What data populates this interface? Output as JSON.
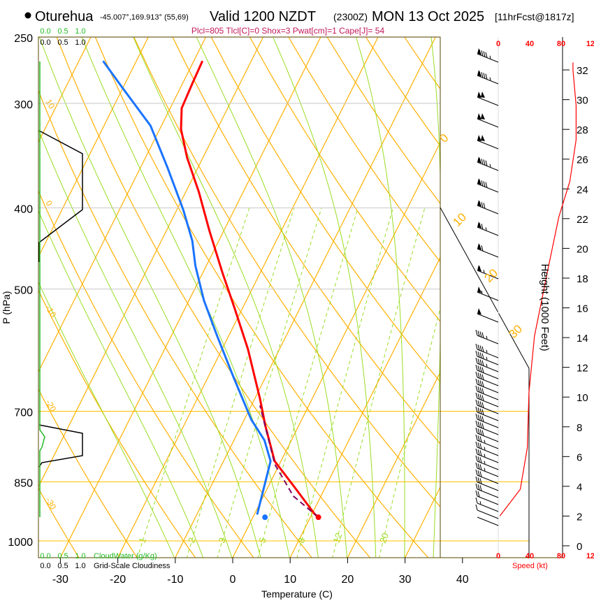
{
  "chart_data": {
    "type": "line",
    "title": {
      "station": "Oturehua",
      "coords": "-45.007°,169.913° (55,69)",
      "valid": "Valid 1200 NZDT",
      "utc": "(2300Z)",
      "date": "MON 13 Oct 2025",
      "forecast": "[11hrFcst@1817z]"
    },
    "indices": "Plcl=805 Tlcl[C]=0 Shox=3 Pwat[cm]=1 Cape[J]= 54",
    "xlabel": "Temperature (C)",
    "ylabel": "P (hPa)",
    "y2label": "Height (1000 Feet)",
    "speed_label": "Speed (kt)",
    "xlim": [
      -33,
      45
    ],
    "ylim_hpa": [
      1050,
      250
    ],
    "x_ticks": [
      "-30",
      "-20",
      "-10",
      "0",
      "10",
      "20",
      "30",
      "40"
    ],
    "x_tick_values": [
      -30,
      -20,
      -10,
      0,
      10,
      20,
      30,
      40
    ],
    "p_ticks": [
      "250",
      "300",
      "400",
      "500",
      "700",
      "850",
      "1000"
    ],
    "p_tick_values": [
      250,
      300,
      400,
      500,
      700,
      850,
      1000
    ],
    "height_ticks": [
      "0",
      "2",
      "4",
      "6",
      "8",
      "10",
      "12",
      "14",
      "16",
      "18",
      "20",
      "22",
      "24",
      "26",
      "28",
      "30",
      "32"
    ],
    "speed_ticks": [
      "0",
      "40",
      "80",
      "120"
    ],
    "speed_tick_values": [
      0,
      40,
      80,
      120
    ],
    "cloud_scale": {
      "water_ticks": [
        "0.0",
        "0.5",
        "1.0"
      ],
      "water_label": "CloudWater (g/Kg)",
      "cover_ticks": [
        "0.0",
        "0.5",
        "1.0"
      ],
      "cover_label": "Grid-Scale Cloudiness"
    },
    "mixing_ratio_labels": [
      "1",
      "2",
      "3",
      "5",
      "8",
      "12",
      "20"
    ],
    "mixing_ratio_values": [
      1,
      2,
      3,
      5,
      8,
      12,
      20
    ],
    "isotherm_labels_left": [
      "10",
      "0",
      "-10",
      "-20",
      "-30"
    ],
    "isotherm_labels_right": [
      "0",
      "10",
      "20",
      "30"
    ],
    "series": [
      {
        "name": "temperature",
        "color": "#ff0000",
        "p": [
          267,
          284,
          304,
          322,
          348,
          383,
          426,
          478,
          526,
          590,
          676,
          730,
          803,
          859,
          928,
          937
        ],
        "t": [
          -48.5,
          -48.3,
          -48,
          -46.3,
          -42.8,
          -37.7,
          -32.5,
          -26.6,
          -21.5,
          -15.5,
          -9.1,
          -5.7,
          -1.1,
          4.3,
          10.4,
          11.4
        ]
      },
      {
        "name": "dewpoint",
        "color": "#1a73ff",
        "p": [
          267,
          287,
          319,
          358,
          402,
          438,
          469,
          516,
          568,
          638,
          716,
          758,
          803,
          851,
          901,
          930
        ],
        "t": [
          -65.8,
          -60.2,
          -51.9,
          -45.3,
          -38.9,
          -34.6,
          -31.9,
          -27.4,
          -22.1,
          -15.5,
          -8.8,
          -4.7,
          -1.8,
          -0.9,
          0,
          0.5
        ]
      },
      {
        "name": "parcel",
        "color": "#800060",
        "p": [
          937,
          884,
          810,
          689
        ],
        "t": [
          11.4,
          5.2,
          -0.8,
          -8.5
        ]
      }
    ],
    "surface_temperature": {
      "p": 937,
      "t": 11.4
    },
    "surface_dewpoint": {
      "p": 937,
      "t": 2.1
    },
    "wind_speed_profile": {
      "height_kft": [
        2.0,
        3.8,
        6.6,
        10.3,
        14.1,
        18.8,
        22.1,
        24.5,
        27.3,
        29.6,
        32.0,
        32.5
      ],
      "speed_kt": [
        2,
        28,
        37,
        39,
        46,
        64,
        77,
        91,
        99,
        99,
        95,
        95
      ]
    },
    "colors": {
      "temp": "#ff0000",
      "dew": "#1a73ff",
      "isotherm": "#ffb000",
      "adiabat": "#99dd22",
      "cloud": "#22bb22",
      "indices": "#c0185a"
    }
  }
}
